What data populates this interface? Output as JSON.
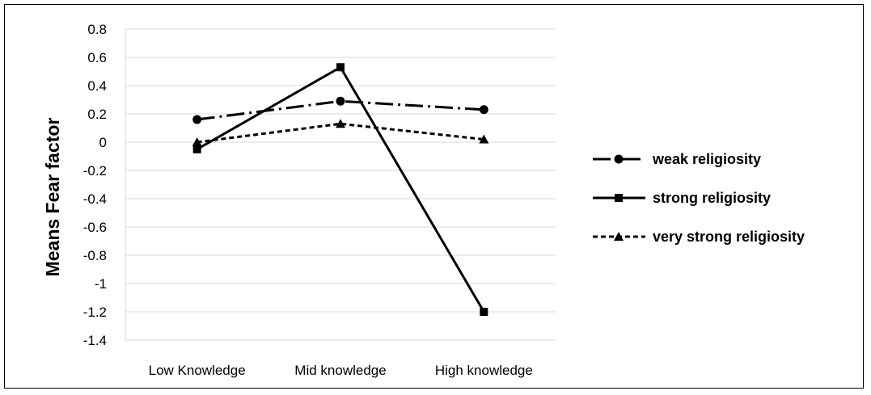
{
  "chart_data": {
    "type": "line",
    "title": "",
    "xlabel": "",
    "ylabel": "Means Fear  factor",
    "categories": [
      "Low Knowledge",
      "Mid knowledge",
      "High knowledge"
    ],
    "ylim": [
      -1.4,
      0.8
    ],
    "y_ticks": [
      "0.8",
      "0.6",
      "0.4",
      "0.2",
      "0",
      "-0.2",
      "-0.4",
      "-0.6",
      "-0.8",
      "-1",
      "-1.2",
      "-1.4"
    ],
    "grid": "horizontal",
    "legend_position": "right",
    "series": [
      {
        "name": "weak religiosity",
        "marker": "circle",
        "line_style": "dash-dot",
        "color": "#000000",
        "values": [
          0.16,
          0.29,
          0.23
        ]
      },
      {
        "name": "strong religiosity",
        "marker": "square",
        "line_style": "solid",
        "color": "#000000",
        "values": [
          -0.05,
          0.53,
          -1.2
        ]
      },
      {
        "name": "very strong religiosity",
        "marker": "triangle",
        "line_style": "dashed",
        "color": "#000000",
        "values": [
          0.0,
          0.13,
          0.02
        ]
      }
    ]
  }
}
